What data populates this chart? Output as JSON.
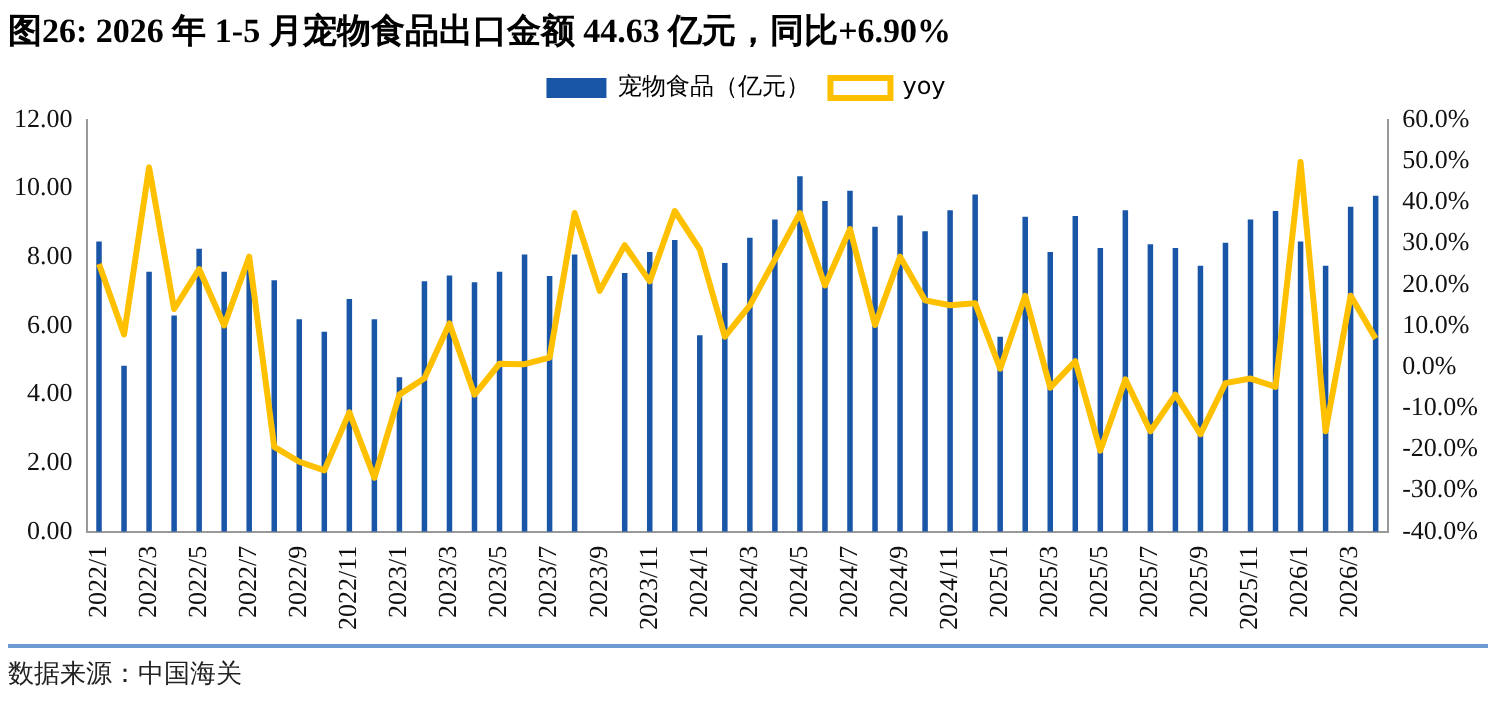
{
  "chart_data": {
    "type": "bar",
    "title": "图26: 2026 年 1-5 月宠物食品出口金额 44.63 亿元，同比+6.90%",
    "categories": [
      "2022/1",
      null,
      "2022/3",
      null,
      "2022/5",
      null,
      "2022/7",
      null,
      "2022/9",
      null,
      "2022/11",
      null,
      "2023/1",
      null,
      "2023/3",
      null,
      "2023/5",
      null,
      "2023/7",
      null,
      "2023/9",
      null,
      "2023/11",
      null,
      "2024/1",
      null,
      "2024/3",
      null,
      "2024/5",
      null,
      "2024/7",
      null,
      "2024/9",
      null,
      "2024/11",
      null,
      "2025/1",
      null,
      "2025/3",
      null,
      "2025/5",
      null,
      "2025/7",
      null,
      "2025/9",
      null,
      "2025/11",
      null,
      "2026/1",
      null,
      "2026/3",
      null
    ],
    "series": [
      {
        "name": "宠物食品（亿元）",
        "color": "#1a56a8",
        "values": [
          8.46,
          4.84,
          7.58,
          6.3,
          8.25,
          7.58,
          7.7,
          7.33,
          6.19,
          5.83,
          6.78,
          6.19,
          4.5,
          7.3,
          7.47,
          7.27,
          7.58,
          8.08,
          7.45,
          8.08,
          null,
          7.54,
          8.15,
          8.5,
          5.73,
          7.83,
          8.57,
          9.1,
          10.36,
          9.64,
          9.94,
          8.89,
          9.22,
          8.76,
          9.37,
          9.83,
          5.68,
          9.18,
          8.15,
          9.2,
          8.27,
          9.37,
          8.38,
          8.27,
          7.75,
          8.42,
          9.1,
          9.35,
          8.46,
          7.75,
          9.47,
          9.79
        ]
      },
      {
        "name": "yoy",
        "type": "line",
        "axis": "y2",
        "color": "#ffc000",
        "values": [
          25.0,
          7.9,
          48.5,
          14.1,
          23.8,
          10.1,
          26.8,
          -19.4,
          -23.0,
          -25.1,
          -11.0,
          -26.9,
          -6.7,
          -2.7,
          10.6,
          -6.7,
          0.8,
          0.7,
          2.3,
          37.4,
          18.5,
          29.6,
          20.8,
          37.9,
          28.6,
          7.4,
          15.0,
          26.1,
          37.4,
          19.8,
          33.5,
          10.2,
          26.8,
          16.2,
          15.0,
          15.5,
          -0.4,
          17.3,
          -5.0,
          1.4,
          -20.3,
          -3.0,
          -15.6,
          -6.7,
          -16.3,
          -3.9,
          -2.8,
          -4.8,
          49.8,
          -15.6,
          17.3,
          6.9
        ]
      }
    ],
    "ylim": [
      0,
      12
    ],
    "yticks": [
      {
        "value": 0,
        "label": "0.00"
      },
      {
        "value": 2,
        "label": "2.00"
      },
      {
        "value": 4,
        "label": "4.00"
      },
      {
        "value": 6,
        "label": "6.00"
      },
      {
        "value": 8,
        "label": "8.00"
      },
      {
        "value": 10,
        "label": "10.00"
      },
      {
        "value": 12,
        "label": "12.00"
      }
    ],
    "y2lim": [
      -40,
      60
    ],
    "y2ticks": [
      {
        "value": -40,
        "label": "-40.0%"
      },
      {
        "value": -30,
        "label": "-30.0%"
      },
      {
        "value": -20,
        "label": "-20.0%"
      },
      {
        "value": -10,
        "label": "-10.0%"
      },
      {
        "value": 0,
        "label": "0.0%"
      },
      {
        "value": 10,
        "label": "10.0%"
      },
      {
        "value": 20,
        "label": "20.0%"
      },
      {
        "value": 30,
        "label": "30.0%"
      },
      {
        "value": 40,
        "label": "40.0%"
      },
      {
        "value": 50,
        "label": "50.0%"
      },
      {
        "value": 60,
        "label": "60.0%"
      }
    ],
    "legend": "top",
    "marker": "none",
    "annotations": [
      "数据来源：中国海关"
    ]
  }
}
